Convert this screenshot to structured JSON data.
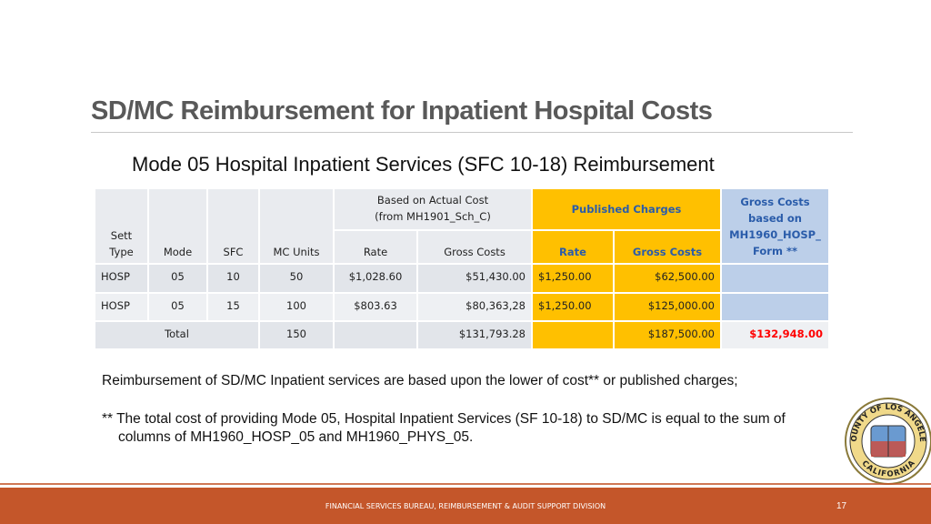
{
  "title": "SD/MC Reimbursement for Inpatient Hospital Costs",
  "subtitle": "Mode 05 Hospital Inpatient Services (SFC 10-18) Reimbursement",
  "table": {
    "group_headers": [
      "Based on Actual Cost\n(from MH1901_Sch_C)",
      "Published Charges",
      "Gross Costs\nbased on\nMH1960_HOSP_\nForm **"
    ],
    "columns": [
      "Sett\nType",
      "Mode",
      "SFC",
      "MC Units",
      "Rate",
      "Gross Costs",
      "Rate",
      "Gross Costs"
    ],
    "rows": [
      [
        "HOSP",
        "05",
        "10",
        "50",
        "$1,028.60",
        "$51,430.00",
        "$1,250.00",
        "$62,500.00"
      ],
      [
        "HOSP",
        "05",
        "15",
        "100",
        "$803.63",
        "$80,363,28",
        "$1,250.00",
        "$125,000.00"
      ]
    ],
    "total": {
      "label": "Total",
      "mc_units": "150",
      "gross_costs": "$131,793.28",
      "published_gross_costs": "$187,500.00",
      "hosp_form_gross_costs": "$132,948.00"
    }
  },
  "notes": [
    "Reimbursement of SD/MC Inpatient services are based upon the lower of cost** or published charges;",
    "** The total cost of providing Mode 05, Hospital Inpatient Services (SF 10-18) to SD/MC is equal to the sum of columns of MH1960_HOSP_05 and MH1960_PHYS_05."
  ],
  "seal": {
    "top": "COUNTY OF LOS ANGELES",
    "bottom": "CALIFORNIA"
  },
  "footer": "FINANCIAL SERVICES BUREAU, REIMBURSEMENT & AUDIT SUPPORT DIVISION",
  "page_number": "17"
}
